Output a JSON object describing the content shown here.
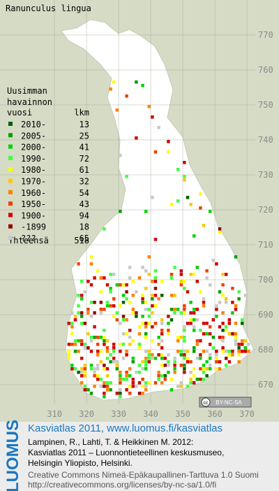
{
  "title": "Ranunculus lingua",
  "legend": {
    "heading": [
      "Uusimman",
      "havainnon",
      "vuosi"
    ],
    "count_heading": "lkm",
    "entries": [
      {
        "label": "2010-",
        "count": 13,
        "color": "#005f00"
      },
      {
        "label": "2005-",
        "count": 25,
        "color": "#00a000"
      },
      {
        "label": "2000-",
        "count": 41,
        "color": "#00d200"
      },
      {
        "label": "1990-",
        "count": 72,
        "color": "#40ff40"
      },
      {
        "label": "1980-",
        "count": 61,
        "color": "#ffff00"
      },
      {
        "label": "1970-",
        "count": 32,
        "color": "#ffc800"
      },
      {
        "label": "1960-",
        "count": 54,
        "color": "#ff8000"
      },
      {
        "label": "1950-",
        "count": 43,
        "color": "#f04000"
      },
      {
        "label": "1900-",
        "count": 94,
        "color": "#d00000"
      },
      {
        "label": "-1899",
        "count": 18,
        "color": "#960000"
      },
      {
        "label": "???",
        "count": 65,
        "color": "#c8c8c8"
      }
    ],
    "total_label": "Yhteensä",
    "total": 518
  },
  "axes": {
    "xlim": [
      293,
      380
    ],
    "ylim": [
      670,
      780
    ],
    "xticks": [
      310,
      320,
      330,
      340,
      350,
      360,
      370
    ],
    "yticks": [
      670,
      680,
      690,
      700,
      710,
      720,
      730,
      740,
      750,
      760,
      770
    ]
  },
  "badge": {
    "icon": "cc",
    "text": "BY-NC-SA"
  },
  "footer": {
    "logo": "LUOMUS",
    "headline": "Kasviatlas 2011, www.luomus.fi/kasviatlas",
    "citation": [
      "Lampinen, R., Lahti, T. & Heikkinen M. 2012:",
      "Kasviatlas 2011 – Luonnontieteellinen keskusmuseo,",
      "Helsingin Yliopisto, Helsinki."
    ],
    "license": [
      "Creative Commons Nimeä-Epäkaupallinen-Tarttuva 1.0 Suomi",
      "http://creativecommons.org/licenses/by-nc-sa/1.0/fi"
    ]
  }
}
